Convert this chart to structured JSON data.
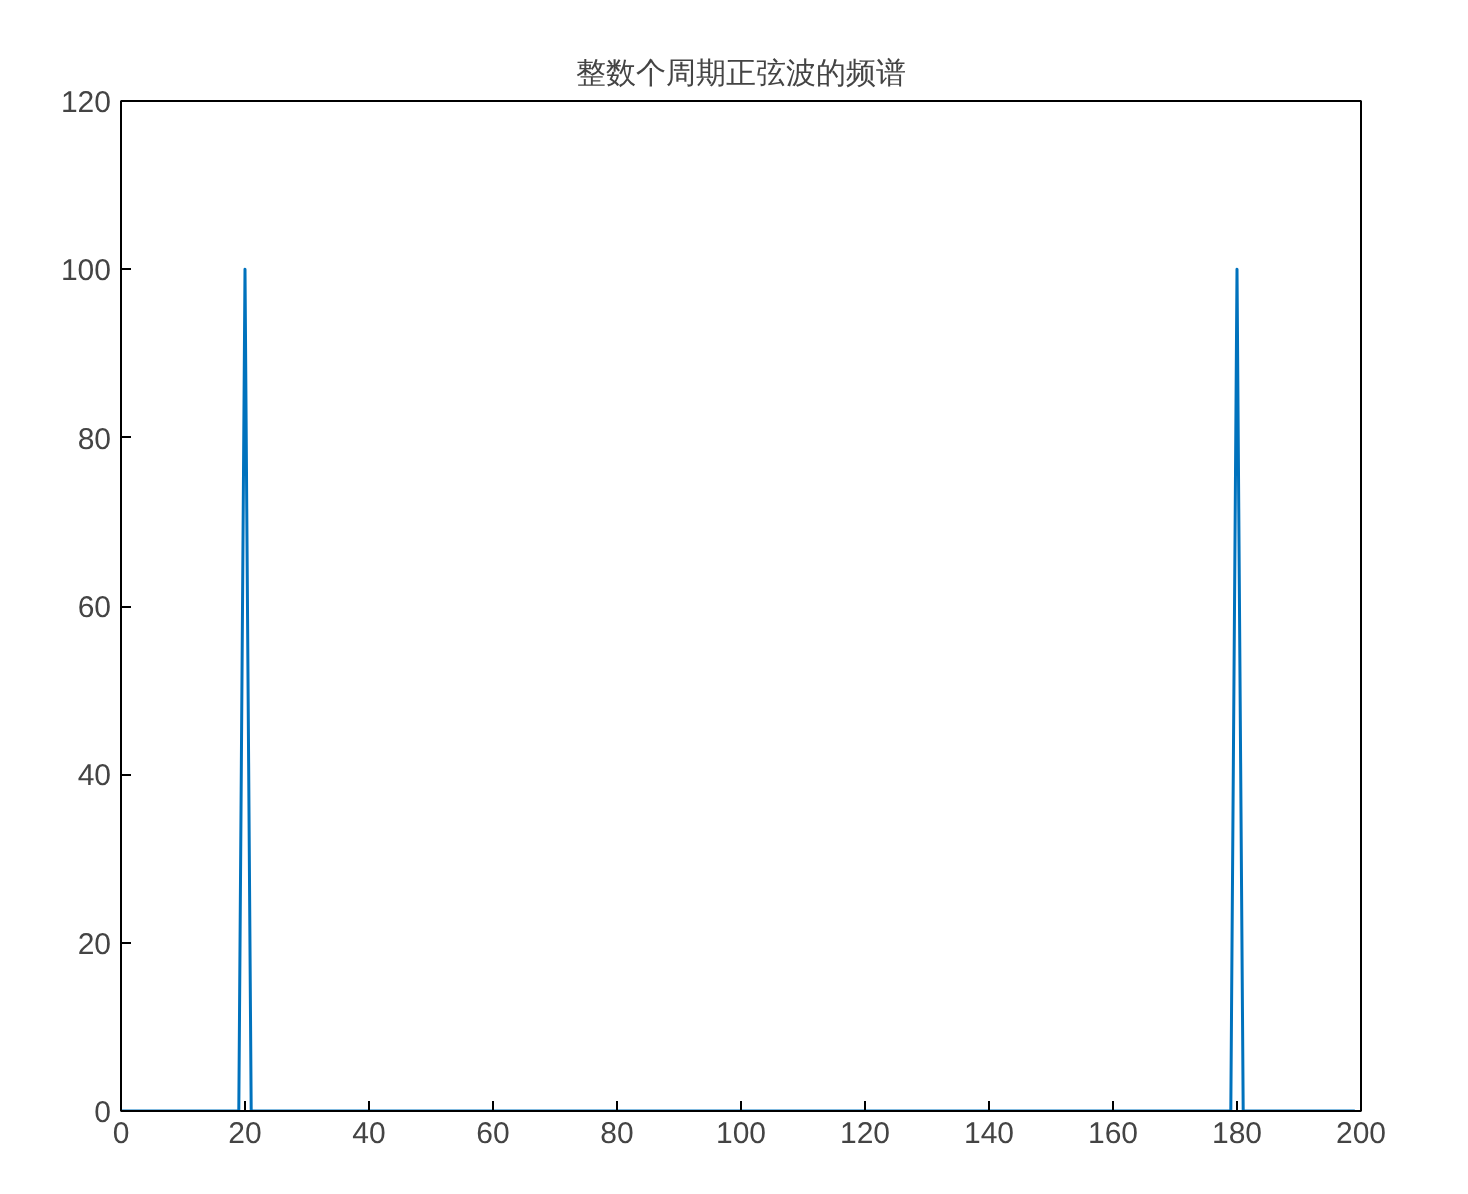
{
  "chart_data": {
    "type": "line",
    "title": "整数个周期正弦波的频谱",
    "x": [
      0,
      19,
      20,
      21,
      179,
      180,
      181,
      199
    ],
    "series": [
      {
        "color": "#0072bd",
        "values": [
          0,
          0,
          100,
          0,
          0,
          100,
          0,
          0
        ]
      }
    ],
    "xlim": [
      0,
      200
    ],
    "xticks": [
      0,
      20,
      40,
      60,
      80,
      100,
      120,
      140,
      160,
      180,
      200
    ],
    "ylim": [
      0,
      120
    ],
    "yticks": [
      0,
      20,
      40,
      60,
      80,
      100,
      120
    ],
    "grid": false,
    "marker": "none",
    "line_style": "solid"
  }
}
